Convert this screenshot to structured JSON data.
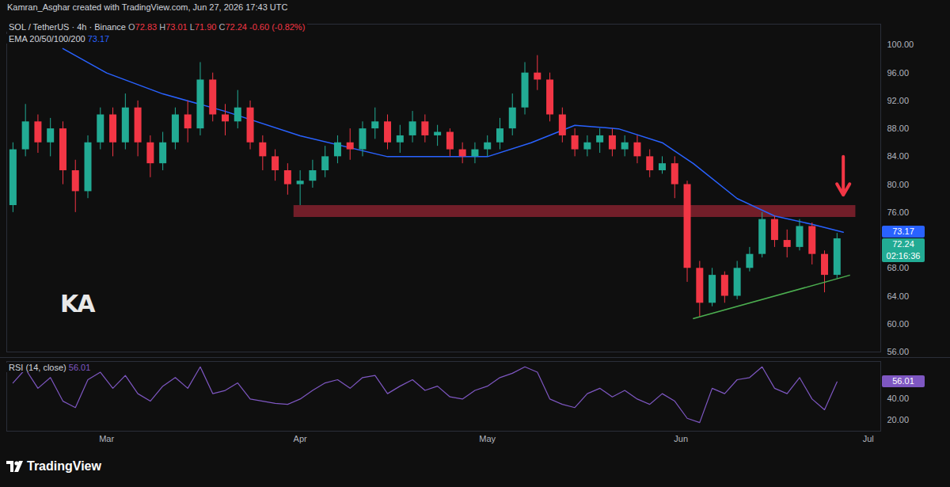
{
  "header": {
    "credit": "Kamran_Asghar created with TradingView.com, Jun 27, 2026 17:43 UTC"
  },
  "watermark": "KA",
  "footer": {
    "brand": "TradingView"
  },
  "chart_data": [
    {
      "type": "candlestick",
      "title": "SOL / TetherUS · 4h · Binance",
      "ohlc_legend": [
        {
          "key": "O",
          "value": "72.83"
        },
        {
          "key": "H",
          "value": "73.01"
        },
        {
          "key": "L",
          "value": "71.90"
        },
        {
          "key": "C",
          "value": "72.24"
        },
        {
          "key": "",
          "value": "-0.60 (-0.82%)"
        }
      ],
      "x": [
        "2026-02-14",
        "2026-02-16",
        "2026-02-18",
        "2026-02-20",
        "2026-02-22",
        "2026-02-24",
        "2026-02-26",
        "2026-02-28",
        "2026-03-02",
        "2026-03-04",
        "2026-03-06",
        "2026-03-08",
        "2026-03-10",
        "2026-03-12",
        "2026-03-14",
        "2026-03-16",
        "2026-03-18",
        "2026-03-20",
        "2026-03-22",
        "2026-03-24",
        "2026-03-26",
        "2026-03-28",
        "2026-03-30",
        "2026-04-01",
        "2026-04-03",
        "2026-04-05",
        "2026-04-07",
        "2026-04-09",
        "2026-04-11",
        "2026-04-13",
        "2026-04-15",
        "2026-04-17",
        "2026-04-19",
        "2026-04-21",
        "2026-04-23",
        "2026-04-25",
        "2026-04-27",
        "2026-04-29",
        "2026-05-01",
        "2026-05-03",
        "2026-05-05",
        "2026-05-07",
        "2026-05-09",
        "2026-05-11",
        "2026-05-13",
        "2026-05-15",
        "2026-05-17",
        "2026-05-19",
        "2026-05-21",
        "2026-05-23",
        "2026-05-25",
        "2026-05-27",
        "2026-05-29",
        "2026-05-31",
        "2026-06-02",
        "2026-06-04",
        "2026-06-06",
        "2026-06-08",
        "2026-06-10",
        "2026-06-12",
        "2026-06-14",
        "2026-06-16",
        "2026-06-18",
        "2026-06-20",
        "2026-06-22",
        "2026-06-24",
        "2026-06-26"
      ],
      "open": [
        77,
        85,
        89,
        86,
        88,
        82,
        79,
        86,
        90,
        86,
        91,
        86,
        83,
        86,
        90,
        88,
        95,
        90,
        89,
        91,
        86,
        84,
        82,
        80,
        80.5,
        82,
        84,
        86,
        85,
        88,
        89,
        86,
        87,
        89,
        87,
        87.5,
        85,
        84,
        85,
        86,
        88,
        91,
        96,
        95,
        90,
        87,
        85,
        86,
        87,
        85,
        86,
        84,
        82,
        83,
        80,
        68,
        63,
        67,
        64,
        68,
        70,
        75,
        72,
        71,
        74,
        70,
        67
      ],
      "high": [
        86,
        91.5,
        90,
        89.5,
        89,
        83.5,
        87,
        91,
        91,
        93,
        92,
        87,
        87.5,
        91,
        92,
        97.5,
        96,
        91.5,
        93.5,
        92,
        87,
        85,
        83,
        82,
        83.5,
        85.5,
        87,
        88,
        89,
        91,
        90,
        88.5,
        90.5,
        90,
        88.5,
        88,
        86,
        86,
        87,
        89.5,
        93,
        97.5,
        98.5,
        96,
        91,
        88,
        87,
        88,
        88,
        87,
        87,
        85,
        84,
        84,
        80.5,
        69,
        68,
        67.5,
        69,
        71,
        76,
        75.5,
        73.5,
        75,
        74.5,
        70.5,
        73.01
      ],
      "low": [
        76,
        84,
        84.5,
        84,
        80,
        76,
        78,
        85,
        84,
        85,
        84,
        81,
        82,
        85,
        86,
        87,
        89,
        87,
        88,
        85,
        82,
        80.5,
        78.5,
        77,
        79.5,
        81,
        83,
        83.5,
        84,
        86.5,
        85,
        84.5,
        86,
        86,
        85.5,
        84,
        83,
        83,
        84,
        85,
        87,
        90,
        93.5,
        89,
        86,
        84,
        84,
        84.5,
        84,
        84,
        83,
        81,
        81.5,
        78,
        66,
        61,
        62.5,
        63,
        63.5,
        67.5,
        69.5,
        71,
        69.5,
        70.5,
        68.5,
        64.5,
        66.5
      ],
      "close": [
        85,
        89,
        86,
        88,
        82,
        79,
        86,
        90,
        86,
        91,
        86,
        83,
        86,
        90,
        88,
        95,
        90,
        89,
        91,
        86,
        84,
        82,
        80,
        80.5,
        82,
        84,
        86,
        85,
        88,
        89,
        86,
        87,
        89,
        87,
        87.5,
        85,
        84,
        85,
        86,
        88,
        91,
        96,
        95,
        90,
        87,
        85,
        86,
        87,
        85,
        86,
        84,
        82,
        83,
        80,
        68,
        63,
        67,
        64,
        68,
        70,
        75,
        72,
        71,
        74,
        70,
        67,
        72.24
      ],
      "series": [
        {
          "name": "EMA 20/50/100/200",
          "legend_value": "73.17",
          "color": "#2962ff",
          "type": "line",
          "x": [
            "2026-02-22",
            "2026-03-01",
            "2026-03-10",
            "2026-03-20",
            "2026-04-01",
            "2026-04-15",
            "2026-05-01",
            "2026-05-08",
            "2026-05-15",
            "2026-05-22",
            "2026-05-29",
            "2026-06-03",
            "2026-06-10",
            "2026-06-16",
            "2026-06-22",
            "2026-06-27"
          ],
          "values": [
            99.5,
            96,
            93,
            90.5,
            87,
            84,
            84,
            86,
            88.5,
            88,
            86,
            83,
            78,
            75.5,
            74.3,
            73.17
          ]
        }
      ],
      "resistance_zone": {
        "x": [
          "2026-03-31",
          "2026-06-29"
        ],
        "y": [
          75.3,
          77
        ],
        "color": "#8b2230"
      },
      "trendline": {
        "x": [
          "2026-06-03",
          "2026-06-28"
        ],
        "y": [
          60.8,
          67
        ],
        "color": "#4caf50"
      },
      "arrow": {
        "x": "2026-06-27",
        "y_from": 84,
        "y_to": 78.5,
        "color": "#f23645"
      },
      "price_labels": [
        {
          "value": 73.17,
          "label": "73.17",
          "color": "#2962ff"
        },
        {
          "value": 72.24,
          "label": "72.24",
          "sublabel": "02:16:36",
          "color": "#22ab94"
        }
      ],
      "xlim": [
        "2026-02-13",
        "2026-07-03"
      ],
      "xticks": [
        {
          "value": "2026-03-01",
          "label": "Mar"
        },
        {
          "value": "2026-04-01",
          "label": "Apr"
        },
        {
          "value": "2026-05-01",
          "label": "May"
        },
        {
          "value": "2026-06-01",
          "label": "Jun"
        },
        {
          "value": "2026-07-01",
          "label": "Jul"
        }
      ],
      "ylim": [
        56,
        103
      ],
      "yticks": [
        {
          "value": 56,
          "label": "56.00"
        },
        {
          "value": 60,
          "label": "60.00"
        },
        {
          "value": 64,
          "label": "64.00"
        },
        {
          "value": 68,
          "label": "68.00"
        },
        {
          "value": 76,
          "label": "76.00"
        },
        {
          "value": 80,
          "label": "80.00"
        },
        {
          "value": 84,
          "label": "84.00"
        },
        {
          "value": 88,
          "label": "88.00"
        },
        {
          "value": 92,
          "label": "92.00"
        },
        {
          "value": 96,
          "label": "96.00"
        },
        {
          "value": 100,
          "label": "100.00"
        }
      ],
      "tick_labels": "y",
      "grid": false
    },
    {
      "type": "line",
      "title": "RSI (14, close)",
      "legend_value": "56.01",
      "color": "#7e57c2",
      "x": [
        "2026-02-14",
        "2026-02-16",
        "2026-02-18",
        "2026-02-20",
        "2026-02-22",
        "2026-02-24",
        "2026-02-26",
        "2026-02-28",
        "2026-03-02",
        "2026-03-04",
        "2026-03-06",
        "2026-03-08",
        "2026-03-10",
        "2026-03-12",
        "2026-03-14",
        "2026-03-16",
        "2026-03-18",
        "2026-03-20",
        "2026-03-22",
        "2026-03-24",
        "2026-03-26",
        "2026-03-28",
        "2026-03-30",
        "2026-04-01",
        "2026-04-03",
        "2026-04-05",
        "2026-04-07",
        "2026-04-09",
        "2026-04-11",
        "2026-04-13",
        "2026-04-15",
        "2026-04-17",
        "2026-04-19",
        "2026-04-21",
        "2026-04-23",
        "2026-04-25",
        "2026-04-27",
        "2026-04-29",
        "2026-05-01",
        "2026-05-03",
        "2026-05-05",
        "2026-05-07",
        "2026-05-09",
        "2026-05-11",
        "2026-05-13",
        "2026-05-15",
        "2026-05-17",
        "2026-05-19",
        "2026-05-21",
        "2026-05-23",
        "2026-05-25",
        "2026-05-27",
        "2026-05-29",
        "2026-05-31",
        "2026-06-02",
        "2026-06-04",
        "2026-06-06",
        "2026-06-08",
        "2026-06-10",
        "2026-06-12",
        "2026-06-14",
        "2026-06-16",
        "2026-06-18",
        "2026-06-20",
        "2026-06-22",
        "2026-06-24",
        "2026-06-26"
      ],
      "values": [
        55,
        68,
        50,
        60,
        38,
        32,
        58,
        65,
        50,
        62,
        45,
        38,
        52,
        60,
        50,
        70,
        45,
        48,
        55,
        40,
        38,
        36,
        35,
        40,
        48,
        55,
        58,
        50,
        60,
        62,
        45,
        52,
        58,
        48,
        52,
        42,
        40,
        48,
        52,
        60,
        64,
        70,
        65,
        40,
        35,
        32,
        45,
        50,
        42,
        48,
        40,
        35,
        45,
        38,
        22,
        18,
        50,
        45,
        58,
        60,
        70,
        50,
        45,
        60,
        40,
        30,
        56.01
      ],
      "value_label": {
        "value": 56.01,
        "label": "56.01"
      },
      "xlim": [
        "2026-02-13",
        "2026-07-03"
      ],
      "xticks": [
        {
          "value": "2026-03-01",
          "label": "Mar"
        },
        {
          "value": "2026-04-01",
          "label": "Apr"
        },
        {
          "value": "2026-05-01",
          "label": "May"
        },
        {
          "value": "2026-06-01",
          "label": "Jun"
        },
        {
          "value": "2026-07-01",
          "label": "Jul"
        }
      ],
      "ylim": [
        10,
        75
      ],
      "yticks": [
        {
          "value": 20,
          "label": "20.00"
        },
        {
          "value": 40,
          "label": "40.00"
        }
      ],
      "grid": false
    }
  ]
}
